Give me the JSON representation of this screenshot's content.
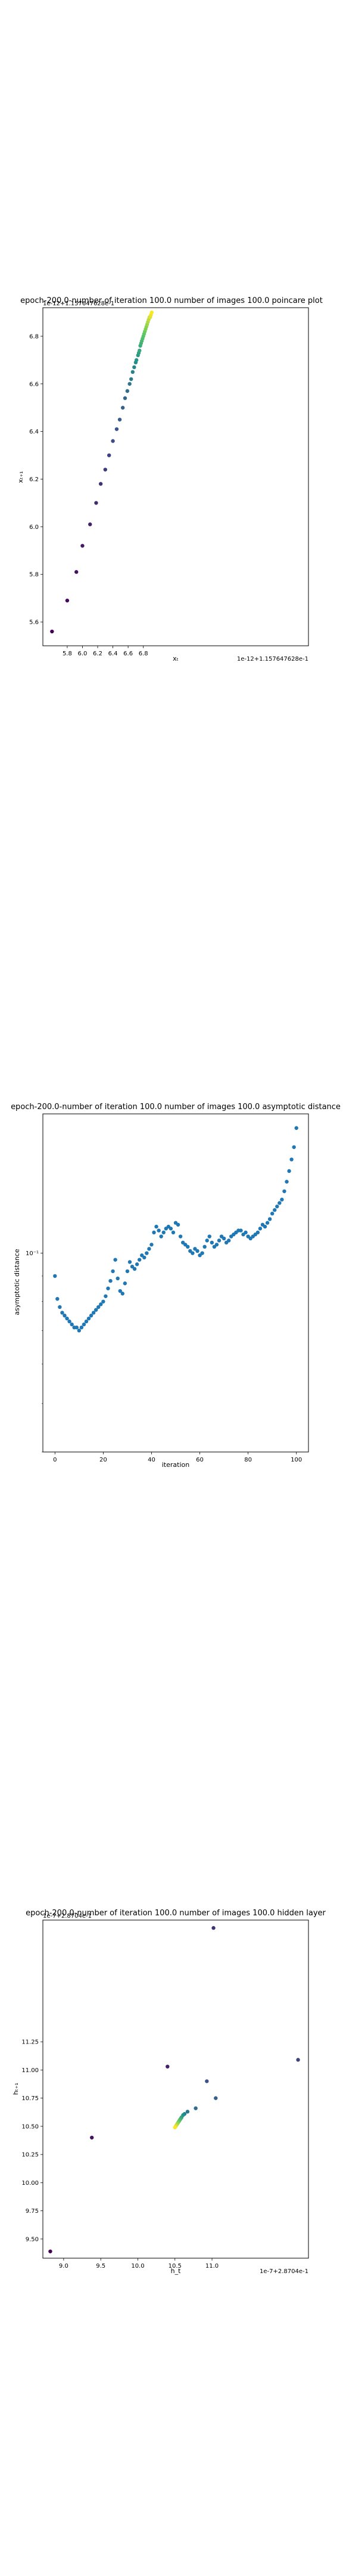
{
  "chart_data": [
    {
      "type": "scatter",
      "title": "epoch-200.0-number of iteration 100.0 number of images 100.0 poincare plot",
      "xlabel": "xₜ",
      "ylabel": "xₜ₊₁",
      "x_offset_text": "1e-12+1.157647628e-1",
      "y_offset_text": "1e-12+1.157647628e-1",
      "xlim": [
        5.48,
        8.97
      ],
      "ylim": [
        5.5,
        6.92
      ],
      "x_ticks": [
        "5.8",
        "6.0",
        "6.2",
        "6.4",
        "6.6",
        "6.8"
      ],
      "y_ticks": [
        "5.6",
        "5.8",
        "6.0",
        "6.2",
        "6.4",
        "6.6",
        "6.8"
      ],
      "colormap": "viridis (dark purple at early iterations to yellow at late iterations)",
      "grid": false,
      "x": [
        5.6,
        5.8,
        5.92,
        6.0,
        6.1,
        6.18,
        6.24,
        6.3,
        6.35,
        6.4,
        6.45,
        6.49,
        6.53,
        6.56,
        6.59,
        6.62,
        6.64,
        6.66,
        6.68,
        6.7,
        6.71,
        6.73,
        6.74,
        6.75,
        6.76,
        6.77,
        6.78,
        6.79,
        6.8,
        6.81,
        6.82,
        6.83,
        6.84,
        6.85,
        6.86,
        6.87,
        6.88,
        6.89,
        6.9,
        6.91
      ],
      "y": [
        5.56,
        5.69,
        5.81,
        5.92,
        6.01,
        6.1,
        6.18,
        6.24,
        6.3,
        6.36,
        6.41,
        6.45,
        6.5,
        6.54,
        6.57,
        6.6,
        6.62,
        6.65,
        6.67,
        6.69,
        6.7,
        6.72,
        6.73,
        6.74,
        6.76,
        6.77,
        6.78,
        6.79,
        6.8,
        6.81,
        6.82,
        6.83,
        6.84,
        6.85,
        6.86,
        6.87,
        6.88,
        6.88,
        6.89,
        6.9
      ]
    },
    {
      "type": "scatter",
      "title": "epoch-200.0-number of iteration 100.0 number of images 100.0 asymptotic distance",
      "xlabel": "iteration",
      "ylabel": "asymptotic distance",
      "xlim": [
        -5,
        105
      ],
      "ylim": [
        0.04,
        0.19
      ],
      "y_scale": "log",
      "x_ticks": [
        "0",
        "20",
        "40",
        "60",
        "80",
        "100"
      ],
      "y_ticks": [
        "10⁻¹"
      ],
      "point_color": "#1f77b4",
      "grid": false,
      "x": [
        0,
        1,
        2,
        3,
        4,
        5,
        6,
        7,
        8,
        9,
        10,
        11,
        12,
        13,
        14,
        15,
        16,
        17,
        18,
        19,
        20,
        21,
        22,
        23,
        24,
        25,
        26,
        27,
        28,
        29,
        30,
        31,
        32,
        33,
        34,
        35,
        36,
        37,
        38,
        39,
        40,
        41,
        42,
        43,
        44,
        45,
        46,
        47,
        48,
        49,
        50,
        51,
        52,
        53,
        54,
        55,
        56,
        57,
        58,
        59,
        60,
        61,
        62,
        63,
        64,
        65,
        66,
        67,
        68,
        69,
        70,
        71,
        72,
        73,
        74,
        75,
        76,
        77,
        78,
        79,
        80,
        81,
        82,
        83,
        84,
        85,
        86,
        87,
        88,
        89,
        90,
        91,
        92,
        93,
        94,
        95,
        96,
        97,
        98,
        99,
        100
      ],
      "y": [
        0.09,
        0.081,
        0.078,
        0.076,
        0.075,
        0.074,
        0.073,
        0.072,
        0.071,
        0.071,
        0.07,
        0.071,
        0.072,
        0.073,
        0.074,
        0.075,
        0.076,
        0.077,
        0.078,
        0.079,
        0.08,
        0.082,
        0.085,
        0.088,
        0.092,
        0.097,
        0.089,
        0.084,
        0.083,
        0.087,
        0.092,
        0.096,
        0.094,
        0.093,
        0.095,
        0.097,
        0.099,
        0.098,
        0.1,
        0.102,
        0.104,
        0.11,
        0.113,
        0.111,
        0.108,
        0.11,
        0.112,
        0.113,
        0.112,
        0.11,
        0.115,
        0.114,
        0.108,
        0.105,
        0.104,
        0.103,
        0.101,
        0.1,
        0.102,
        0.101,
        0.099,
        0.1,
        0.103,
        0.106,
        0.108,
        0.105,
        0.103,
        0.104,
        0.106,
        0.108,
        0.107,
        0.105,
        0.106,
        0.108,
        0.109,
        0.11,
        0.111,
        0.111,
        0.109,
        0.11,
        0.108,
        0.107,
        0.108,
        0.109,
        0.11,
        0.112,
        0.114,
        0.113,
        0.115,
        0.117,
        0.12,
        0.122,
        0.124,
        0.126,
        0.128,
        0.133,
        0.139,
        0.146,
        0.154,
        0.163,
        0.178
      ]
    },
    {
      "type": "scatter",
      "title": "epoch-200.0-number of iteration 100.0  number of images 100.0 hidden layer",
      "xlabel": "h_t",
      "ylabel": "hₜ₊₁",
      "x_offset_text": "1e-7+2.8704e-1",
      "y_offset_text": "1e-7+2.8704e-1",
      "xlim": [
        8.72,
        12.3
      ],
      "ylim": [
        9.33,
        12.33
      ],
      "x_ticks": [
        "9.0",
        "9.5",
        "10.0",
        "10.5",
        "11.0"
      ],
      "y_ticks": [
        "9.50",
        "9.75",
        "10.00",
        "10.25",
        "10.50",
        "10.75",
        "11.00",
        "11.25"
      ],
      "colormap": "viridis (dark purple at early iterations to yellow at late iterations)",
      "grid": false,
      "x": [
        8.82,
        9.38,
        10.4,
        11.02,
        12.16,
        10.93,
        11.05,
        10.78,
        10.67,
        10.63,
        10.61,
        10.59,
        10.58,
        10.57,
        10.56,
        10.55,
        10.54,
        10.53,
        10.52,
        10.51,
        10.5
      ],
      "y": [
        9.39,
        10.4,
        11.03,
        12.26,
        11.09,
        10.9,
        10.75,
        10.66,
        10.63,
        10.61,
        10.6,
        10.58,
        10.57,
        10.56,
        10.55,
        10.54,
        10.53,
        10.52,
        10.51,
        10.5,
        10.49
      ]
    }
  ]
}
